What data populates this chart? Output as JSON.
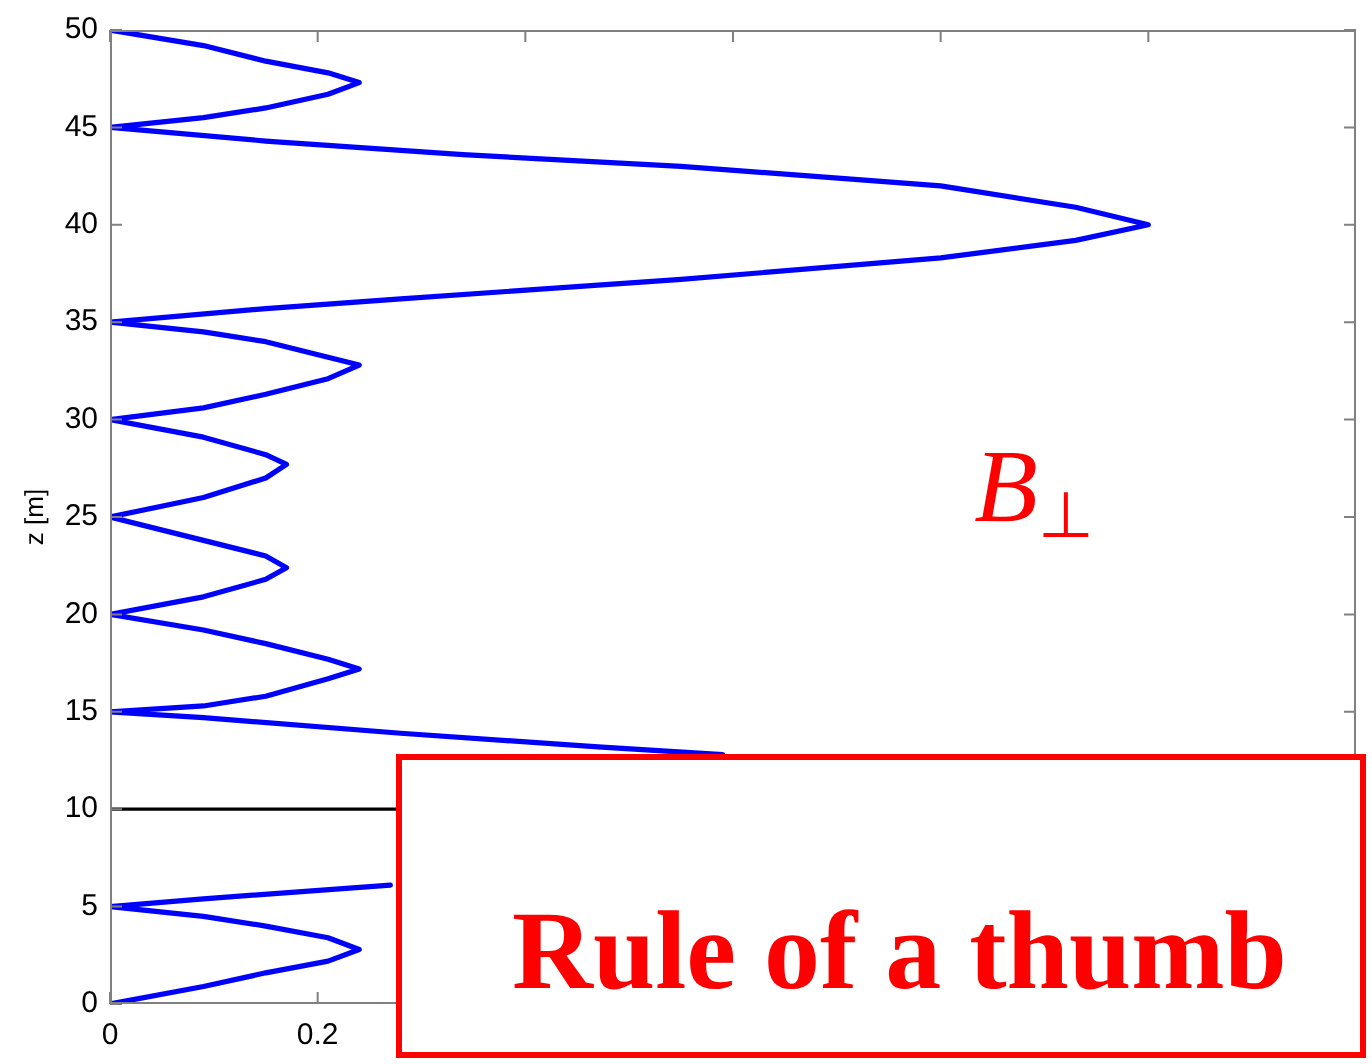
{
  "chart_data": {
    "type": "line",
    "ylabel": "z [m]",
    "annotations": [
      "B$_{⊥}$",
      "Rule of a thumb"
    ],
    "x": [
      0,
      0.09,
      0.15,
      0.21,
      0.24,
      0.21,
      0.15,
      0.09,
      0,
      0.09,
      0.27,
      null,
      0.59,
      0.47,
      0.28,
      0.09,
      0,
      0.09,
      0.15,
      0.21,
      0.24,
      0.21,
      0.15,
      0.09,
      0,
      0.09,
      0.15,
      0.17,
      0.15,
      0.09,
      0,
      0.09,
      0.15,
      0.17,
      0.15,
      0.09,
      0,
      0.09,
      0.15,
      0.21,
      0.24,
      0.21,
      0.15,
      0.09,
      0,
      0.15,
      0.28,
      0.55,
      0.8,
      0.93,
      1,
      0.93,
      0.8,
      0.55,
      0.34,
      0.15,
      0,
      0.09,
      0.15,
      0.21,
      0.24,
      0.21,
      0.15,
      0.09,
      0
    ],
    "values": [
      0,
      0.9,
      1.6,
      2.2,
      2.8,
      3.4,
      4,
      4.5,
      5,
      5.4,
      6.1,
      null,
      12.8,
      13.2,
      13.9,
      14.7,
      15,
      15.3,
      15.8,
      16.7,
      17.2,
      17.7,
      18.5,
      19.2,
      20,
      20.9,
      21.8,
      22.4,
      23,
      23.8,
      25,
      26,
      27,
      27.7,
      28.2,
      29.1,
      30,
      30.6,
      31.3,
      32.1,
      32.8,
      33.2,
      34,
      34.5,
      35,
      35.7,
      36.2,
      37.2,
      38.3,
      39.2,
      40,
      40.9,
      42,
      43,
      43.6,
      44.3,
      45,
      45.5,
      46,
      46.7,
      47.3,
      47.8,
      48.4,
      49.2,
      50
    ],
    "color": "#0000ff",
    "marker": "none",
    "xlim": [
      0,
      1.2
    ],
    "xticks": [
      0,
      0.2,
      {
        "value": 0.4,
        "label": null
      },
      {
        "value": 0.6,
        "label": null
      },
      {
        "value": 0.8,
        "label": null
      },
      {
        "value": 1,
        "label": null
      }
    ],
    "ylim": [
      0,
      50
    ],
    "yticks": [
      0,
      5,
      10,
      15,
      20,
      25,
      30,
      35,
      40,
      45,
      50
    ],
    "ref_lines": [
      {
        "axis": "y",
        "value": 10,
        "color": "#000000"
      }
    ]
  }
}
